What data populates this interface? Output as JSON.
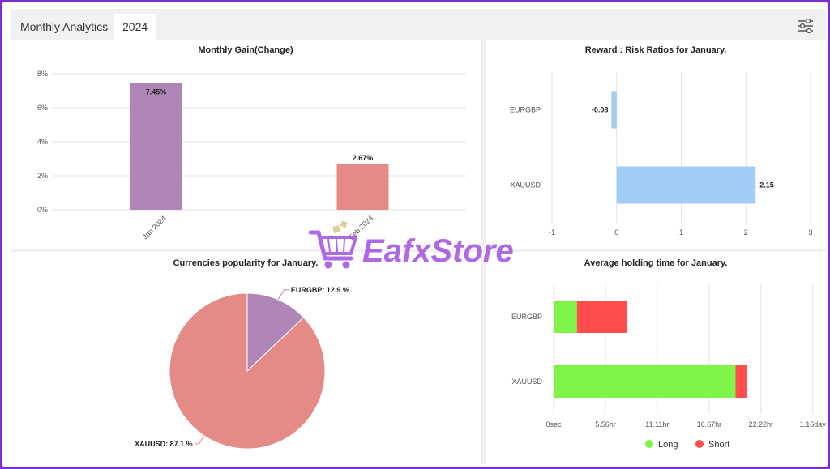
{
  "header": {
    "tab_title": "Monthly Analytics",
    "tab_year": "2024",
    "settings_icon": "sliders-icon"
  },
  "watermark": {
    "text": "EafxStore",
    "icon": "shopping-cart-icon"
  },
  "colors": {
    "purple_bar": "#b086b8",
    "salmon_bar": "#e48a87",
    "blue_bar": "#9fcdf3",
    "long": "#80f44a",
    "short": "#ff4d4d"
  },
  "chart_data": [
    {
      "type": "bar",
      "title": "Monthly Gain(Change)",
      "categories": [
        "Jan 2024",
        "Feb 2024"
      ],
      "values": [
        7.45,
        2.67
      ],
      "data_labels": [
        "7.45%",
        "2.67%"
      ],
      "bar_colors": [
        "#b086b8",
        "#e48a87"
      ],
      "ylim": [
        0,
        8
      ],
      "yticks": [
        "0%",
        "2%",
        "4%",
        "6%",
        "8%"
      ],
      "grid": true
    },
    {
      "type": "bar",
      "orientation": "horizontal",
      "title": "Reward : Risk Ratios for January.",
      "categories": [
        "EURGBP",
        "XAUUSD"
      ],
      "values": [
        -0.08,
        2.15
      ],
      "data_labels": [
        "-0.08",
        "2.15"
      ],
      "xlim": [
        -1,
        3
      ],
      "xticks": [
        "-1",
        "0",
        "1",
        "2",
        "3"
      ],
      "grid": true
    },
    {
      "type": "pie",
      "title": "Currencies popularity for January.",
      "labels": [
        "EURGBP",
        "XAUUSD"
      ],
      "values": [
        12.9,
        87.1
      ],
      "data_labels": [
        "EURGBP: 12.9 %",
        "XAUUSD: 87.1 %"
      ],
      "slice_colors": [
        "#b086b8",
        "#e48a87"
      ]
    },
    {
      "type": "bar",
      "orientation": "horizontal",
      "stacked": true,
      "title": "Average holding time for January.",
      "categories": [
        "EURGBP",
        "XAUUSD"
      ],
      "series": [
        {
          "name": "Long",
          "values": [
            2.5,
            19.5
          ],
          "unit": "hr"
        },
        {
          "name": "Short",
          "values": [
            5.4,
            1.2
          ],
          "unit": "hr"
        }
      ],
      "xlim": [
        0,
        27.8
      ],
      "xticks": [
        "0sec",
        "5.56hr",
        "11.11hr",
        "16.67hr",
        "22.22hr",
        "1.16day"
      ],
      "xtick_values": [
        0,
        5.56,
        11.11,
        16.67,
        22.22,
        27.78
      ],
      "legend": "bottom",
      "grid": true
    }
  ]
}
